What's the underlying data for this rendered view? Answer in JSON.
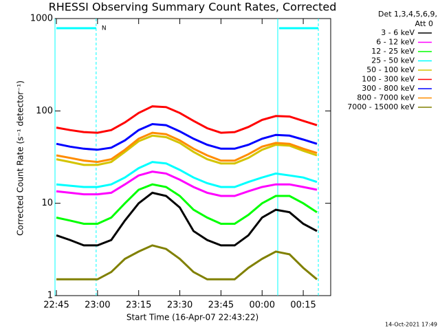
{
  "chart_data": {
    "type": "line",
    "title": "RHESSI Observing Summary Count Rates, Corrected",
    "x_label": "Start Time (16-Apr-07 22:43:22)",
    "y_label": "Corrected Count Rate (s⁻¹ detector⁻¹)",
    "legend_title": [
      "Det 1,3,4,5,6,9,",
      "Att 0"
    ],
    "footer": "14-Oct-2021 17:49",
    "log_y": true,
    "xlim": [
      1364.5,
      1465
    ],
    "ylim": [
      1,
      1000
    ],
    "xticks": [
      {
        "value": 1365,
        "label": "22:45"
      },
      {
        "value": 1380,
        "label": "23:00"
      },
      {
        "value": 1395,
        "label": "23:15"
      },
      {
        "value": 1410,
        "label": "23:30"
      },
      {
        "value": 1425,
        "label": "23:45"
      },
      {
        "value": 1440,
        "label": "00:00"
      },
      {
        "value": 1455,
        "label": "00:15"
      }
    ],
    "yticks": [
      1,
      10,
      100,
      1000
    ],
    "night_intervals": {
      "label": "N",
      "color": "#00ffff",
      "ranges": [
        [
          1364.5,
          1379.5
        ],
        [
          1445.7,
          1460.5
        ]
      ]
    },
    "x": [
      1365,
      1370,
      1375,
      1380,
      1385,
      1390,
      1395,
      1400,
      1405,
      1410,
      1415,
      1420,
      1425,
      1430,
      1435,
      1440,
      1445,
      1450,
      1455,
      1460
    ],
    "series": [
      {
        "name": "3 - 6 keV",
        "color": "#000000",
        "values": [
          4.5,
          4,
          3.5,
          3.5,
          4,
          6.5,
          10,
          13,
          12,
          9,
          5,
          4,
          3.5,
          3.5,
          4.5,
          7,
          8.5,
          8,
          6,
          5
        ]
      },
      {
        "name": "6 - 12 keV",
        "color": "#ff00ff",
        "values": [
          13.5,
          13,
          12.5,
          12.5,
          13,
          16,
          20,
          22,
          21,
          18,
          15,
          13,
          12,
          12,
          13.5,
          15,
          16,
          16,
          15,
          14
        ]
      },
      {
        "name": "12 - 25 keV",
        "color": "#00ff00",
        "values": [
          7,
          6.5,
          6,
          6,
          7,
          10,
          14,
          16,
          15,
          12,
          8.5,
          7,
          6,
          6,
          7.5,
          10,
          12,
          12,
          10,
          8
        ]
      },
      {
        "name": "25 - 50 keV",
        "color": "#00ffff",
        "values": [
          16,
          15.5,
          15,
          15,
          16,
          19,
          24,
          28,
          27,
          23,
          19,
          16.5,
          15,
          15,
          17,
          19,
          21,
          20,
          19,
          17
        ]
      },
      {
        "name": "50 - 100 keV",
        "color": "#d4c400",
        "values": [
          30,
          28,
          26,
          26,
          28,
          36,
          47,
          54,
          52,
          45,
          36,
          30,
          27,
          27,
          31,
          38,
          43,
          42,
          37,
          33
        ]
      },
      {
        "name": "100 - 300 keV",
        "color": "#ff0000",
        "values": [
          66,
          62,
          59,
          58,
          62,
          75,
          95,
          112,
          110,
          95,
          78,
          65,
          58,
          59,
          67,
          80,
          88,
          87,
          78,
          70
        ]
      },
      {
        "name": "300 - 800 keV",
        "color": "#0000ff",
        "values": [
          44,
          41,
          39,
          38,
          40,
          48,
          62,
          72,
          70,
          60,
          50,
          43,
          39,
          39,
          43,
          50,
          55,
          54,
          49,
          44
        ]
      },
      {
        "name": "800 - 7000 keV",
        "color": "#ff8c00",
        "values": [
          33,
          31,
          29,
          28,
          30,
          38,
          50,
          58,
          56,
          48,
          39,
          33,
          29,
          29,
          34,
          41,
          45,
          44,
          39,
          35
        ]
      },
      {
        "name": "7000 - 15000 keV",
        "color": "#808000",
        "values": [
          1.5,
          1.5,
          1.5,
          1.5,
          1.8,
          2.5,
          3,
          3.5,
          3.2,
          2.5,
          1.8,
          1.5,
          1.5,
          1.5,
          2,
          2.5,
          3,
          2.8,
          2,
          1.5
        ]
      }
    ]
  }
}
